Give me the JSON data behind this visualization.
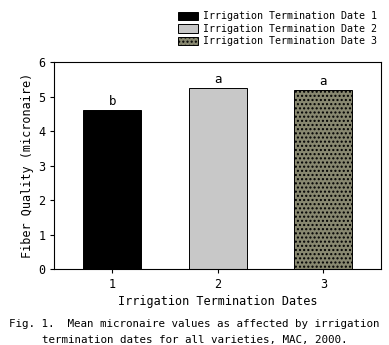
{
  "categories": [
    "1",
    "2",
    "3"
  ],
  "values": [
    4.6,
    5.25,
    5.18
  ],
  "bar_labels": [
    "b",
    "a",
    "a"
  ],
  "bar_colors": [
    "#000000",
    "#c8c8c8",
    "#888870"
  ],
  "bar_hatches": [
    null,
    null,
    "...."
  ],
  "legend_labels": [
    "Irrigation Termination Date 1",
    "Irrigation Termination Date 2",
    "Irrigation Termination Date 3"
  ],
  "legend_colors": [
    "#000000",
    "#c8c8c8",
    "#888870"
  ],
  "legend_hatches": [
    null,
    null,
    "...."
  ],
  "xlabel": "Irrigation Termination Dates",
  "ylabel": "Fiber Quality (micronaire)",
  "ylim": [
    0,
    6
  ],
  "yticks": [
    0,
    1,
    2,
    3,
    4,
    5,
    6
  ],
  "caption_line1": "Fig. 1.  Mean micronaire values as affected by irrigation",
  "caption_line2": "termination dates for all varieties, MAC, 2000.",
  "background_color": "#ffffff"
}
